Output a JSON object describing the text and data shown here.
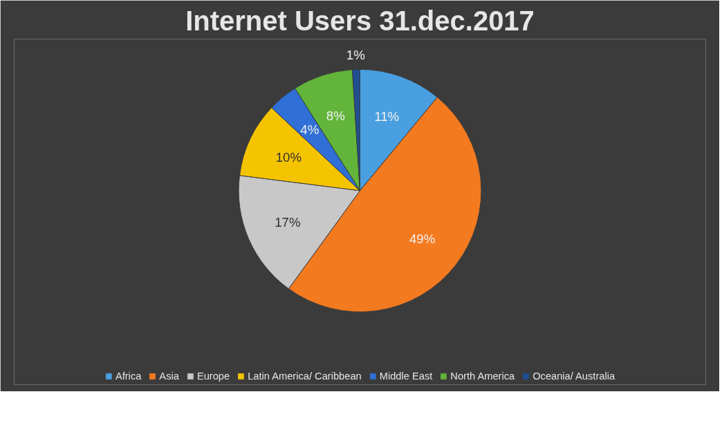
{
  "chart_data": {
    "type": "pie",
    "title": "Internet Users 31.dec.2017",
    "categories": [
      "Africa",
      "Asia",
      "Europe",
      "Latin America/ Caribbean",
      "Middle East",
      "North America",
      "Oceania/ Australia"
    ],
    "values": [
      11,
      49,
      17,
      10,
      4,
      8,
      1
    ],
    "value_labels": [
      "11%",
      "49%",
      "17%",
      "10%",
      "4%",
      "8%",
      "1%"
    ],
    "colors": [
      "#4a9fe0",
      "#f47a20",
      "#c8c8c8",
      "#f5c400",
      "#2f6fd6",
      "#62b53a",
      "#1f4f8f"
    ],
    "legend": "bottom"
  }
}
